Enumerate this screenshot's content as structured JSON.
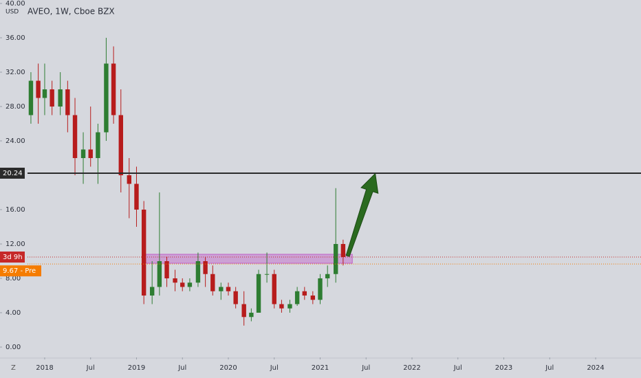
{
  "chart_data": {
    "type": "candlestick",
    "title": "AVEO, 1W, Cboe BZX",
    "y_unit": "USD",
    "timezone_label": "Z",
    "x": [
      2017.85,
      2017.93,
      2018.0,
      2018.08,
      2018.17,
      2018.25,
      2018.33,
      2018.42,
      2018.5,
      2018.58,
      2018.67,
      2018.75,
      2018.83,
      2018.92,
      2019.0,
      2019.08,
      2019.17,
      2019.25,
      2019.33,
      2019.42,
      2019.5,
      2019.58,
      2019.67,
      2019.75,
      2019.83,
      2019.92,
      2020.0,
      2020.08,
      2020.17,
      2020.25,
      2020.33,
      2020.42,
      2020.5,
      2020.58,
      2020.67,
      2020.75,
      2020.83,
      2020.92,
      2021.0,
      2021.08,
      2021.17,
      2021.25
    ],
    "open": [
      27,
      31,
      29,
      30,
      28,
      30,
      27,
      22,
      23,
      22,
      25,
      33,
      27,
      20,
      19,
      16,
      6,
      7,
      10,
      8,
      7.5,
      7,
      7.5,
      10,
      8.5,
      6.5,
      7,
      6.5,
      5,
      3.5,
      4,
      8.5,
      8.5,
      5,
      4.5,
      5,
      6.5,
      6,
      5.5,
      8,
      8.5,
      12
    ],
    "high": [
      32,
      33,
      33,
      31,
      32,
      31,
      29,
      25,
      28,
      26,
      36,
      35,
      30,
      22,
      21,
      17,
      10,
      18,
      10.5,
      9,
      8,
      8,
      11,
      10.5,
      9.5,
      7.5,
      7.5,
      7,
      6.5,
      4.5,
      9,
      11,
      9,
      5.5,
      5.5,
      7,
      7,
      6.5,
      8.5,
      9.5,
      18.5,
      12.5
    ],
    "low": [
      26,
      26,
      27,
      27,
      27,
      25,
      20,
      19,
      21,
      19,
      24,
      26,
      18,
      15,
      14,
      5,
      5,
      6,
      7,
      6.5,
      6.5,
      6.5,
      7,
      7,
      6,
      5.5,
      6,
      4.5,
      2.5,
      3,
      4,
      7.5,
      4.5,
      4,
      4,
      4.8,
      5.5,
      5,
      5,
      7,
      7.5,
      9.5
    ],
    "close": [
      31,
      29,
      30,
      28,
      30,
      27,
      22,
      23,
      22,
      25,
      33,
      27,
      20,
      19,
      16,
      6,
      7,
      10,
      8,
      7.5,
      7,
      7.5,
      10,
      8.5,
      6.5,
      7,
      6.5,
      5,
      3.5,
      4,
      8.5,
      8.5,
      5,
      4.5,
      5,
      6.5,
      6,
      5.5,
      8,
      8.5,
      12,
      10.48
    ],
    "up_color": "#2e7d32",
    "down_color": "#b71c1c",
    "xlim": [
      2017.813,
      2024.494
    ],
    "xticks": [
      {
        "value": 2018,
        "label": "2018"
      },
      {
        "value": 2018.5,
        "label": "Jul"
      },
      {
        "value": 2019,
        "label": "2019"
      },
      {
        "value": 2019.5,
        "label": "Jul"
      },
      {
        "value": 2020,
        "label": "2020"
      },
      {
        "value": 2020.5,
        "label": "Jul"
      },
      {
        "value": 2021,
        "label": "2021"
      },
      {
        "value": 2021.5,
        "label": "Jul"
      },
      {
        "value": 2022,
        "label": "2022"
      },
      {
        "value": 2022.5,
        "label": "Jul"
      },
      {
        "value": 2023,
        "label": "2023"
      },
      {
        "value": 2023.5,
        "label": "Jul"
      },
      {
        "value": 2024,
        "label": "2024"
      }
    ],
    "ylim": [
      -1.2,
      40.4
    ],
    "yticks": [
      {
        "value": 0,
        "label": "0.00"
      },
      {
        "value": 4,
        "label": "4.00"
      },
      {
        "value": 8,
        "label": "8.00"
      },
      {
        "value": 12,
        "label": "12.00"
      },
      {
        "value": 16,
        "label": "16.00"
      },
      {
        "value": 24,
        "label": "24.00"
      },
      {
        "value": 28,
        "label": "28.00"
      },
      {
        "value": 32,
        "label": "32.00"
      },
      {
        "value": 36,
        "label": "36.00"
      },
      {
        "value": 40,
        "label": "40.00"
      }
    ],
    "horizontal_line": {
      "value": 20.24,
      "label": "20.24",
      "color": "#2b2b2b"
    },
    "last_price_label": "3d 9h",
    "last_price_color": "#c62828",
    "pre_market": {
      "value": 9.67,
      "label": "9.67 - Pre",
      "color": "#f57c00"
    },
    "zone": {
      "x": [
        2019.1,
        2021.35
      ],
      "y": [
        9.76,
        10.8
      ],
      "color": "#c060c8"
    },
    "arrow": {
      "from": [
        2021.3,
        10.6
      ],
      "to": [
        2021.6,
        20.2
      ],
      "color": "#2a6a1f"
    }
  }
}
